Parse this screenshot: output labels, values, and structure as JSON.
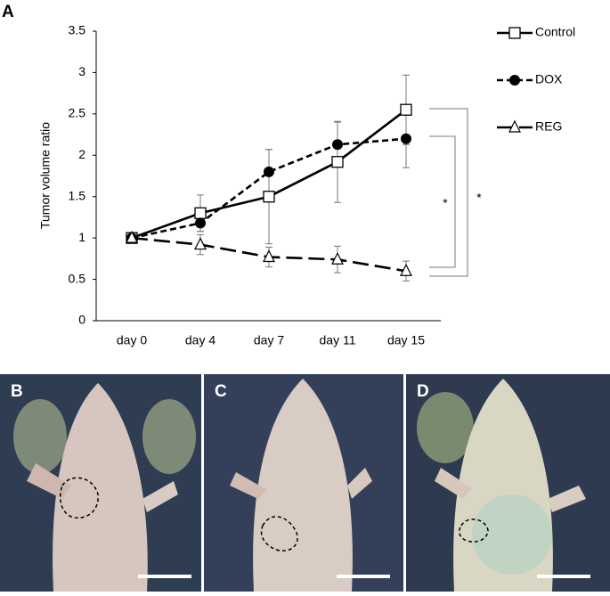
{
  "figure_label": "A",
  "photo_panels": [
    "B",
    "C",
    "D"
  ],
  "chart_data": {
    "type": "line",
    "ylabel": "Tumor volume ratio",
    "categories": [
      "day 0",
      "day 4",
      "day 7",
      "day 11",
      "day 15"
    ],
    "ylim": [
      0,
      3.5
    ],
    "yticks": [
      0,
      0.5,
      1,
      1.5,
      2,
      2.5,
      3,
      3.5
    ],
    "grid": false,
    "legend": "right",
    "series": [
      {
        "name": "Control",
        "color": "#000000",
        "marker": "square",
        "line_style": "solid",
        "values": [
          1,
          1.3,
          1.5,
          1.92,
          2.55
        ],
        "errors": [
          0,
          0.22,
          0.57,
          0.49,
          0.42
        ]
      },
      {
        "name": "DOX",
        "color": "#000000",
        "marker": "circle",
        "line_style": "dashed",
        "values": [
          1,
          1.18,
          1.8,
          2.13,
          2.2
        ],
        "errors": [
          0,
          0.1,
          0.27,
          0.27,
          0.35
        ]
      },
      {
        "name": "REG",
        "color": "#000000",
        "marker": "triangle",
        "line_style": "longdash",
        "values": [
          1,
          0.92,
          0.77,
          0.74,
          0.6
        ],
        "errors": [
          0,
          0.12,
          0.12,
          0.16,
          0.12
        ]
      }
    ],
    "annotations": [
      "*",
      "*"
    ]
  }
}
